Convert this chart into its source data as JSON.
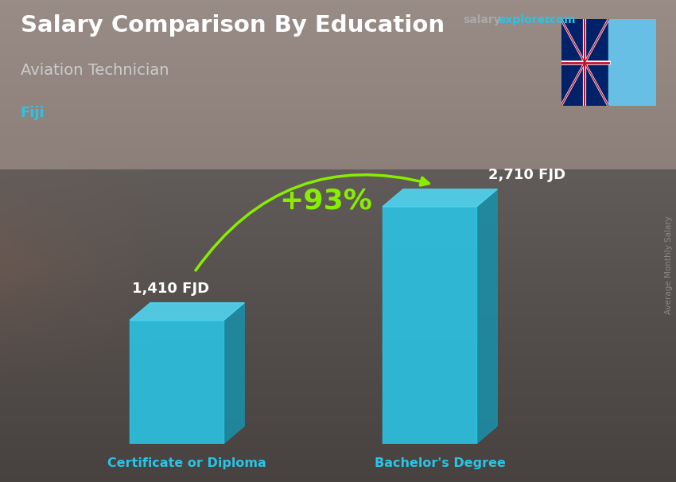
{
  "title": "Salary Comparison By Education",
  "subtitle": "Aviation Technician",
  "country": "Fiji",
  "categories": [
    "Certificate or Diploma",
    "Bachelor's Degree"
  ],
  "values": [
    1410,
    2710
  ],
  "labels": [
    "1,410 FJD",
    "2,710 FJD"
  ],
  "pct_change": "+93%",
  "bar_color_front": "#29C5E6",
  "bar_color_side": "#1A8FA8",
  "bar_color_top": "#50D8F5",
  "title_color": "#ffffff",
  "subtitle_color": "#cccccc",
  "country_color": "#29C5E6",
  "label_color": "#ffffff",
  "xlabel_color": "#29C5E6",
  "arrow_color": "#88EE00",
  "pct_color": "#88EE00",
  "salary_color": "#aaaaaa",
  "explorer_color": "#29C5E6",
  "right_label": "Average Monthly Salary",
  "figsize": [
    8.5,
    6.06
  ],
  "dpi": 100
}
